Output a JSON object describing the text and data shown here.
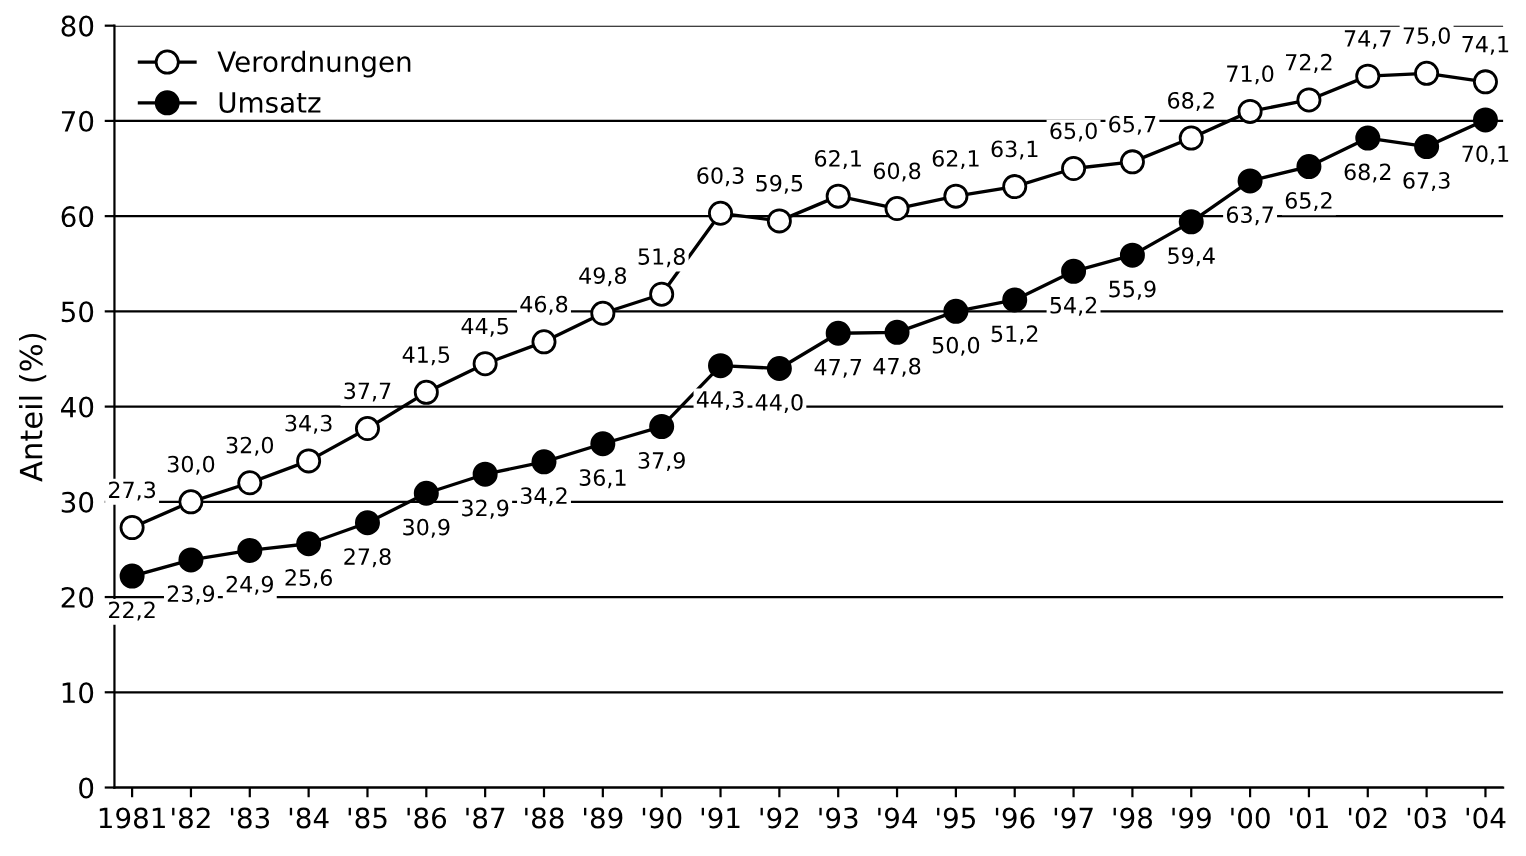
{
  "chart_data": {
    "type": "line",
    "ylabel": "Anteil (%)",
    "categories": [
      "1981",
      "'82",
      "'83",
      "'84",
      "'85",
      "'86",
      "'87",
      "'88",
      "'89",
      "'90",
      "'91",
      "'92",
      "'93",
      "'94",
      "'95",
      "'96",
      "'97",
      "'98",
      "'99",
      "'00",
      "'01",
      "'02",
      "'03",
      "'04"
    ],
    "series": [
      {
        "name": "Verordnungen",
        "color": "#ffffff",
        "values": [
          27.3,
          30.0,
          32.0,
          34.3,
          37.7,
          41.5,
          44.5,
          46.8,
          49.8,
          51.8,
          60.3,
          59.5,
          62.1,
          60.8,
          62.1,
          63.1,
          65.0,
          65.7,
          68.2,
          71.0,
          72.2,
          74.7,
          75.0,
          74.1
        ],
        "value_labels": [
          "27,3",
          "30,0",
          "32,0",
          "34,3",
          "37,7",
          "41,5",
          "44,5",
          "46,8",
          "49,8",
          "51,8",
          "60,3",
          "59,5",
          "62,1",
          "60,8",
          "62,1",
          "63,1",
          "65,0",
          "65,7",
          "68,2",
          "71,0",
          "72,2",
          "74,7",
          "75,0",
          "74,1"
        ]
      },
      {
        "name": "Umsatz",
        "color": "#000000",
        "values": [
          22.2,
          23.9,
          24.9,
          25.6,
          27.8,
          30.9,
          32.9,
          34.2,
          36.1,
          37.9,
          44.3,
          44.0,
          47.7,
          47.8,
          50.0,
          51.2,
          54.2,
          55.9,
          59.4,
          63.7,
          65.2,
          68.2,
          67.3,
          70.1
        ],
        "value_labels": [
          "22,2",
          "23,9",
          "24,9",
          "25,6",
          "27,8",
          "30,9",
          "32,9",
          "34,2",
          "36,1",
          "37,9",
          "44,3",
          "44,0",
          "47,7",
          "47,8",
          "50,0",
          "51,2",
          "54,2",
          "55,9",
          "59,4",
          "63,7",
          "65,2",
          "68,2",
          "67,3",
          "70,1"
        ]
      }
    ],
    "ylim": [
      0,
      80
    ],
    "yticks": [
      0,
      10,
      20,
      30,
      40,
      50,
      60,
      70,
      80
    ],
    "grid": "y",
    "legend": "top left",
    "marker": "circle",
    "line_style": "solid"
  }
}
